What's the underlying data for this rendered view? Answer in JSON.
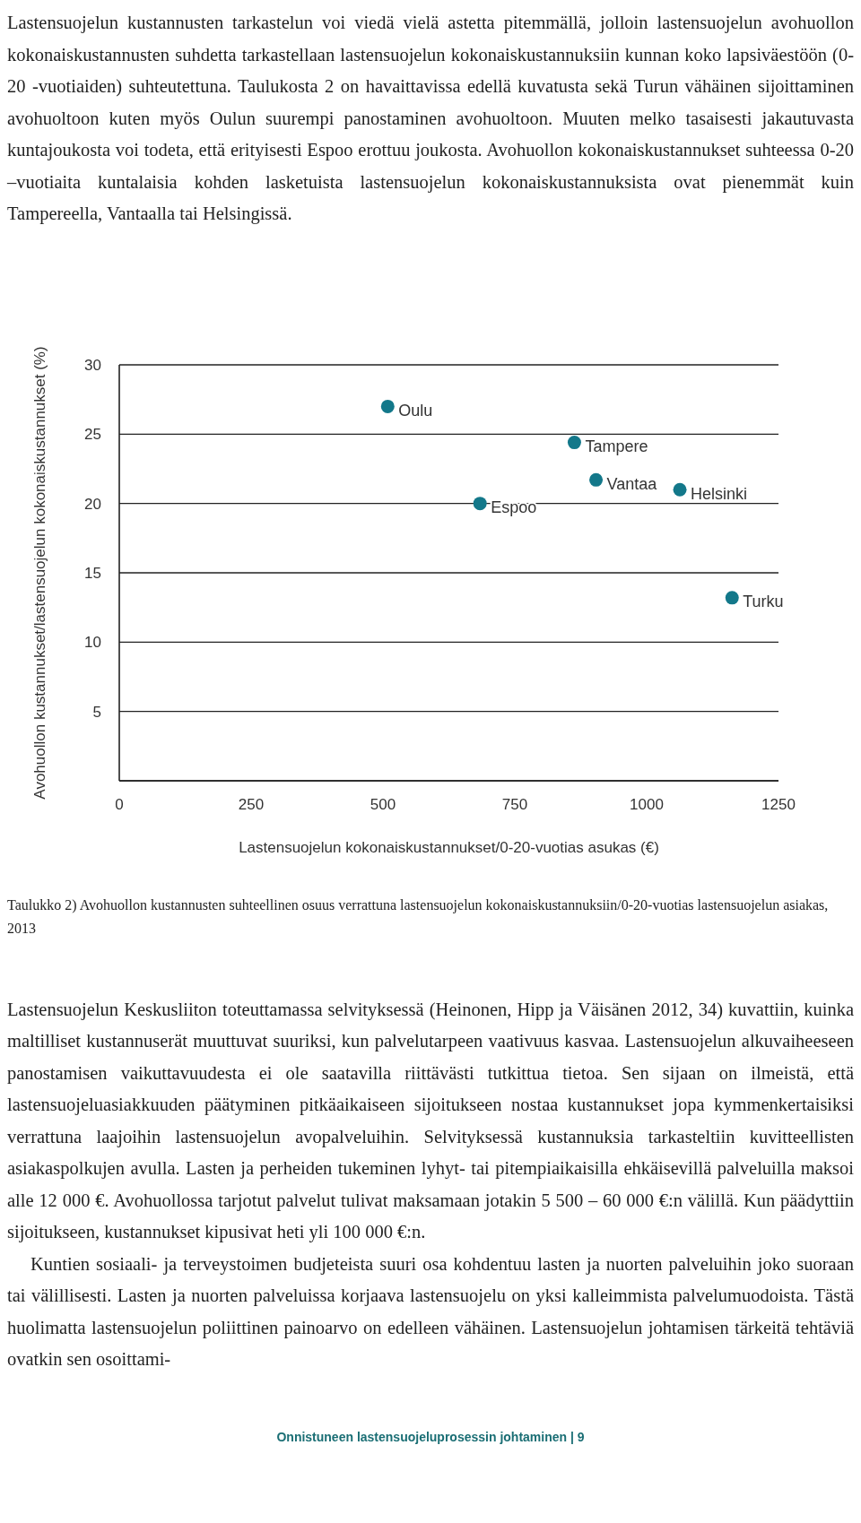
{
  "chart_data": {
    "type": "scatter",
    "xlabel": "Lastensuojelun kokonaiskustannukset/0-20-vuotias asukas (€)",
    "ylabel": "Avohuollon kustannukset/lastensuojelun kokonaiskustannukset (%)",
    "x": [
      509,
      684,
      863,
      904,
      1063,
      1162
    ],
    "values": [
      27.0,
      20.0,
      24.4,
      21.7,
      21.0,
      13.2
    ],
    "color": "#13788a",
    "marker": "circle",
    "grid": "y",
    "xlim": [
      0,
      1250
    ],
    "xticks": [
      0,
      250,
      500,
      750,
      1000,
      1250
    ],
    "ylim": [
      0,
      30
    ],
    "yticks": [
      5,
      10,
      15,
      20,
      25,
      30
    ],
    "annotations": [
      "Lastensuojelun kustannusten tarkastelun voi viedä vielä astetta pitemmällä, jolloin lastensuojelun avohuollon kokonaiskustannusten suhdetta tarkastellaan lastensuojelun kokonaiskustannuksiin kunnan koko lapsiväestöön (0-20 -vuotiaiden) suhteutettuna. Taulukosta 2 on havaittavissa edellä kuvatusta sekä Turun vähäinen sijoittaminen avohuoltoon kuten myös Oulun suurempi panostaminen avohuoltoon. Muuten melko tasaisesti jakautuvasta kuntajoukosta voi todeta, että erityisesti Espoo erottuu joukosta. Avohuollon kokonaiskustannukset suhteessa 0-20 –vuotiaita kuntalaisia kohden lasketuista lastensuojelun kokonaiskustannuksista ovat pienemmät  kuin Tampereella, Vantaalla tai Helsingissä.",
      "Taulukko 2) Avohuollon kustannusten suhteellinen osuus verrattuna lastensuojelun kokonaiskustannuksiin/0-20-vuotias lastensuojelun asiakas, 2013",
      "Lastensuojelun Keskusliiton toteuttamassa selvityksessä (Heinonen, Hipp ja Väisänen 2012, 34) kuvattiin, kuinka maltilliset kustannuserät muuttuvat suuriksi, kun palvelutarpeen vaativuus kasvaa. Lastensuojelun alkuvaiheeseen panostamisen vaikuttavuudesta ei ole saatavilla riittävästi tutkittua tietoa. Sen sijaan on ilmeistä, että lastensuojeluasiakkuuden päätyminen pitkäaikaiseen sijoitukseen nostaa kustannukset jopa kymmenkertaisiksi verrattuna laajoihin lastensuojelun avopalveluihin. Selvityksessä kustannuksia tarkasteltiin kuvitteellisten asiakaspolkujen avulla. Lasten ja perheiden tukeminen lyhyt- tai pitempiaikaisilla ehkäisevillä palveluilla maksoi alle 12 000 €. Avohuollossa tarjotut palvelut tulivat maksamaan jotakin 5 500 – 60 000 €:n välillä. Kun päädyttiin sijoitukseen, kustannukset kipusivat heti yli 100 000 €:n.",
      "Kuntien sosiaali- ja terveystoimen budjeteista suuri osa kohdentuu lasten ja nuorten palveluihin joko suoraan tai välillisesti. Lasten ja nuorten palveluissa korjaava lastensuojelu on yksi kalleimmista palvelumuodoista. Tästä huolimatta lastensuojelun poliittinen painoarvo on edelleen vähäinen.  Lastensuojelun johtamisen tärkeitä tehtäviä ovatkin sen osoittami-",
      "Onnistuneen lastensuojeluprosessin johtaminen | 9",
      {
        "text": "Oulu",
        "x": 509,
        "y": 27.0
      },
      {
        "text": "Espoo",
        "x": 684,
        "y": 20.0
      },
      {
        "text": "Tampere",
        "x": 863,
        "y": 24.4
      },
      {
        "text": "Vantaa",
        "x": 904,
        "y": 21.7
      },
      {
        "text": "Helsinki",
        "x": 1063,
        "y": 21.0
      },
      {
        "text": "Turku",
        "x": 1162,
        "y": 13.2
      }
    ]
  }
}
